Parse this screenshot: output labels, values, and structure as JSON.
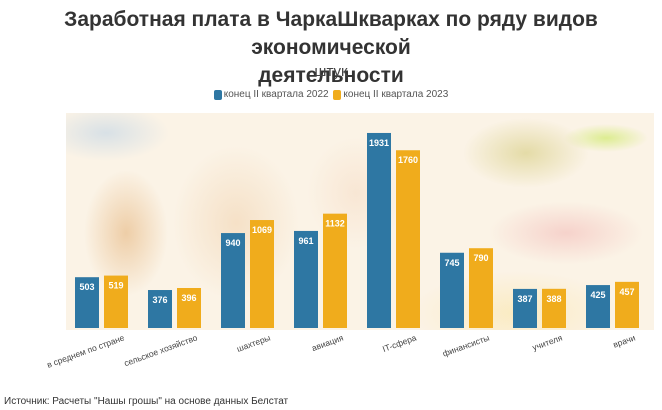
{
  "colors": {
    "series_2022": "#2e77a3",
    "series_2023": "#f0ac1c"
  },
  "chart_data": {
    "type": "bar",
    "title": "Заработная плата в ЧаркаШкварках по ряду видов экономической деятельности",
    "title_line1": "Заработная плата в ЧаркаШкварках по ряду видов экономической",
    "title_line2": "деятельности",
    "subtitle": "штук",
    "xlabel": "",
    "ylabel": "",
    "ylim": [
      0,
      2100
    ],
    "grid": false,
    "legend_position": "top-center",
    "categories": [
      "в среднем по стране",
      "сельское хозяйство",
      "шахтеры",
      "авиация",
      "IT-сфера",
      "финансисты",
      "учителя",
      "врачи"
    ],
    "series": [
      {
        "name": "конец II квартала 2022",
        "values": [
          503,
          376,
          940,
          961,
          1931,
          745,
          387,
          425
        ]
      },
      {
        "name": "конец II квартала 2023",
        "values": [
          519,
          396,
          1069,
          1132,
          1760,
          790,
          388,
          457
        ]
      }
    ]
  },
  "source": "Источник: Расчеты \"Нашы грошы\" на основе данных Белстат"
}
